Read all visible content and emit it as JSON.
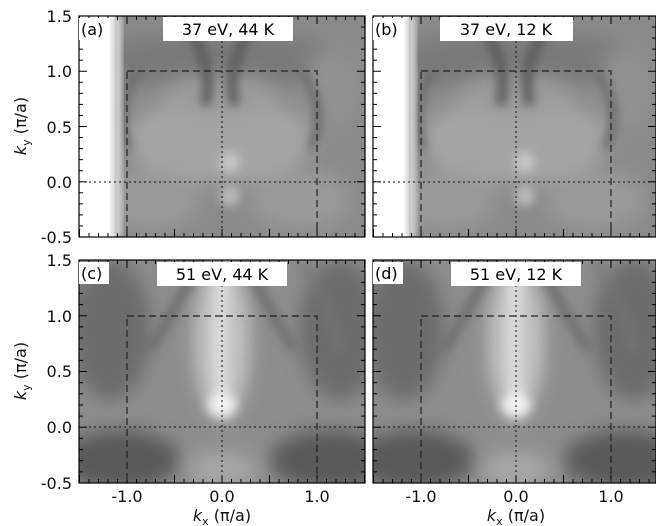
{
  "figure": {
    "y_axis_label": "k",
    "y_axis_subscript": "y",
    "y_axis_unit": " (π/a)",
    "x_axis_label": "k",
    "x_axis_subscript": "x",
    "x_axis_unit": " (π/a)"
  },
  "panels": [
    {
      "letter": "(a)",
      "title": "37 eV, 44 K",
      "photon_energy_eV": 37,
      "temperature_K": 44
    },
    {
      "letter": "(b)",
      "title": "37 eV, 12 K",
      "photon_energy_eV": 37,
      "temperature_K": 12
    },
    {
      "letter": "(c)",
      "title": "51 eV, 44 K",
      "photon_energy_eV": 51,
      "temperature_K": 44
    },
    {
      "letter": "(d)",
      "title": "51 eV, 12 K",
      "photon_energy_eV": 51,
      "temperature_K": 12
    }
  ],
  "chart_data": {
    "type": "heatmap",
    "x_ticks": [
      "-1.0",
      "0.0",
      "1.0"
    ],
    "y_ticks": [
      "-0.5",
      "0.0",
      "0.5",
      "1.0",
      "1.5"
    ],
    "xlim": [
      -1.5,
      1.5
    ],
    "ylim": [
      -0.5,
      1.5
    ],
    "zone_boundary": {
      "kx": [
        -1.0,
        1.0
      ],
      "ky": [
        -0.5,
        1.0
      ]
    },
    "guide_lines": {
      "kx": 0.0,
      "ky": 0.0
    },
    "colormap": "grayscale"
  }
}
